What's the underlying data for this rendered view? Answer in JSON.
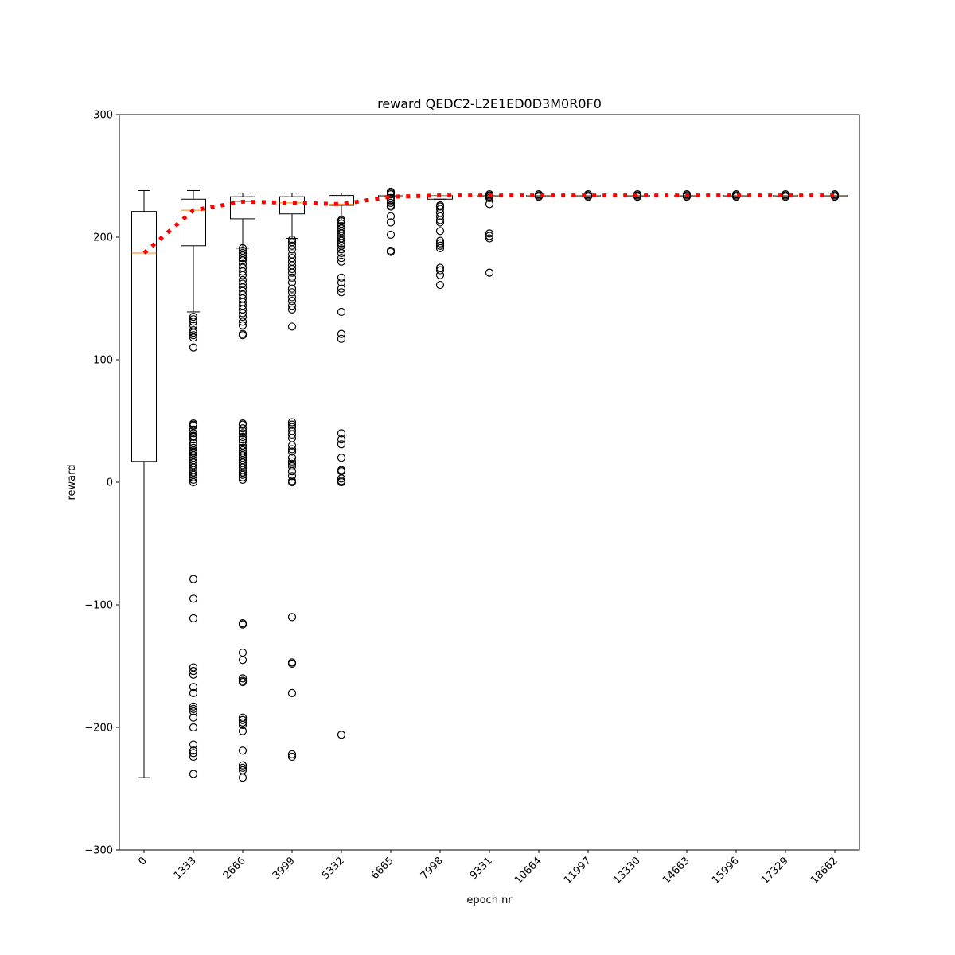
{
  "chart_data": {
    "type": "box",
    "title": "reward QEDC2-L2E1ED0D3M0R0F0",
    "xlabel": "epoch nr",
    "ylabel": "reward",
    "ylim": [
      -300,
      300
    ],
    "yticks": [
      -300,
      -200,
      -100,
      0,
      100,
      200,
      300
    ],
    "ytick_labels": [
      "−300",
      "−200",
      "−100",
      "0",
      "100",
      "200",
      "300"
    ],
    "categories": [
      "0",
      "1333",
      "2666",
      "3999",
      "5332",
      "6665",
      "7998",
      "9331",
      "10664",
      "11997",
      "13330",
      "14663",
      "15996",
      "17329",
      "18662"
    ],
    "boxes": [
      {
        "whislo": -241,
        "q1": 17,
        "med": 187,
        "q3": 221,
        "whishi": 238,
        "fliers": []
      },
      {
        "whislo": 139,
        "q1": 193,
        "med": 222,
        "q3": 231,
        "whishi": 238,
        "fliers": [
          135,
          133,
          131,
          128,
          124,
          122,
          120,
          118,
          110,
          48,
          47,
          46,
          43,
          40,
          38,
          37,
          35,
          32,
          30,
          28,
          26,
          25,
          24,
          22,
          20,
          18,
          16,
          14,
          12,
          10,
          8,
          6,
          4,
          2,
          0,
          -79,
          -95,
          -111,
          -151,
          -154,
          -157,
          -167,
          -172,
          -183,
          -185,
          -187,
          -192,
          -200,
          -214,
          -219,
          -221,
          -224,
          -238
        ]
      },
      {
        "whislo": 191,
        "q1": 215,
        "med": 229,
        "q3": 233,
        "whishi": 236,
        "fliers": [
          191,
          189,
          187,
          185,
          183,
          181,
          178,
          175,
          172,
          169,
          165,
          162,
          159,
          156,
          153,
          150,
          147,
          144,
          141,
          138,
          135,
          131,
          128,
          121,
          120,
          48,
          47,
          44,
          42,
          40,
          37,
          35,
          33,
          30,
          28,
          26,
          24,
          22,
          20,
          18,
          16,
          14,
          12,
          10,
          8,
          6,
          4,
          2,
          -115,
          -116,
          -139,
          -145,
          -160,
          -162,
          -163,
          -192,
          -194,
          -196,
          -198,
          -203,
          -219,
          -231,
          -233,
          -235,
          -241
        ]
      },
      {
        "whislo": 199,
        "q1": 219,
        "med": 228,
        "q3": 233,
        "whishi": 236,
        "fliers": [
          198,
          196,
          193,
          190,
          186,
          183,
          180,
          177,
          174,
          171,
          167,
          163,
          158,
          155,
          151,
          148,
          144,
          141,
          127,
          49,
          47,
          45,
          42,
          39,
          36,
          30,
          27,
          25,
          20,
          17,
          15,
          13,
          9,
          5,
          1,
          0,
          -110,
          -147,
          -148,
          -172,
          -222,
          -224
        ]
      },
      {
        "whislo": 214,
        "q1": 226,
        "med": 227,
        "q3": 234,
        "whishi": 236,
        "fliers": [
          214,
          213,
          211,
          209,
          207,
          205,
          203,
          201,
          199,
          197,
          195,
          193,
          190,
          187,
          183,
          180,
          167,
          163,
          158,
          155,
          139,
          121,
          117,
          40,
          35,
          31,
          20,
          10,
          9,
          3,
          1,
          0,
          -206
        ]
      },
      {
        "whislo": 233,
        "q1": 233,
        "med": 234,
        "q3": 234,
        "whishi": 234,
        "fliers": [
          237,
          236,
          235,
          232,
          230,
          228,
          226,
          225,
          217,
          212,
          202,
          189,
          188
        ]
      },
      {
        "whislo": 231,
        "q1": 231,
        "med": 234,
        "q3": 234,
        "whishi": 236,
        "fliers": [
          226,
          225,
          223,
          220,
          217,
          214,
          212,
          205,
          197,
          195,
          193,
          191,
          175,
          173,
          169,
          161
        ]
      },
      {
        "whislo": 234,
        "q1": 234,
        "med": 234,
        "q3": 234,
        "whishi": 234,
        "fliers": [
          235,
          234,
          233,
          232,
          227,
          203,
          201,
          199,
          171
        ]
      },
      {
        "whislo": 234,
        "q1": 234,
        "med": 234,
        "q3": 234,
        "whishi": 234,
        "fliers": [
          235,
          234,
          233
        ]
      },
      {
        "whislo": 234,
        "q1": 234,
        "med": 234,
        "q3": 234,
        "whishi": 234,
        "fliers": [
          235,
          234,
          233
        ]
      },
      {
        "whislo": 234,
        "q1": 234,
        "med": 234,
        "q3": 234,
        "whishi": 234,
        "fliers": [
          235,
          234,
          233
        ]
      },
      {
        "whislo": 234,
        "q1": 234,
        "med": 234,
        "q3": 234,
        "whishi": 234,
        "fliers": [
          235,
          234,
          233
        ]
      },
      {
        "whislo": 234,
        "q1": 234,
        "med": 234,
        "q3": 234,
        "whishi": 234,
        "fliers": [
          235,
          234,
          233
        ]
      },
      {
        "whislo": 234,
        "q1": 234,
        "med": 234,
        "q3": 234,
        "whishi": 234,
        "fliers": [
          235,
          234,
          233
        ]
      },
      {
        "whislo": 234,
        "q1": 234,
        "med": 234,
        "q3": 234,
        "whishi": 234,
        "fliers": [
          235,
          234,
          233
        ]
      }
    ],
    "mean_line": {
      "values": [
        187,
        222,
        229,
        228,
        227,
        233,
        234,
        234,
        234,
        234,
        234,
        234,
        234,
        234,
        234
      ],
      "color": "#ff0000",
      "style": "dotted"
    },
    "colors": {
      "box": "#000000",
      "median": "#ff7f0e",
      "mean_line": "#ff0000",
      "flier": "#000000"
    },
    "grid": false,
    "legend": "none"
  }
}
